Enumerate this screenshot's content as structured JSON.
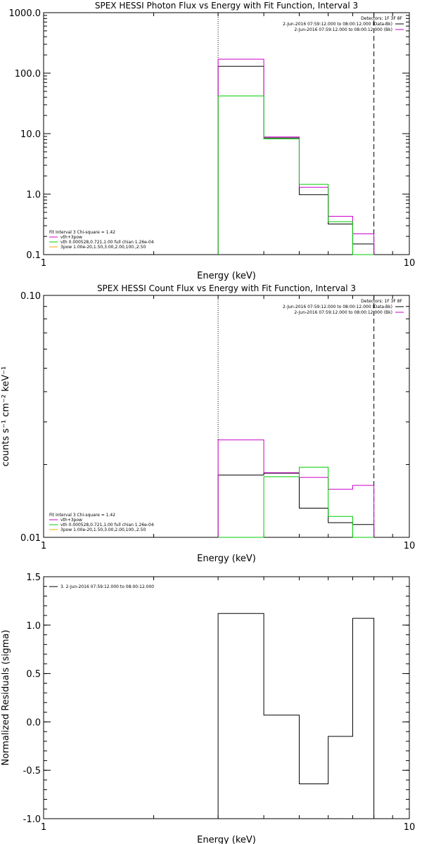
{
  "chart_data": [
    {
      "type": "line",
      "step": true,
      "title": "SPEX HESSI Photon Flux vs Energy with Fit Function, Interval 3",
      "xlabel": "Energy (keV)",
      "ylabel": "",
      "xscale": "log",
      "yscale": "log",
      "xlim": [
        1,
        10
      ],
      "ylim": [
        0.1,
        1000
      ],
      "xticks": [
        "1",
        "10"
      ],
      "yticks": [
        "0.1",
        "1.0",
        "10.0",
        "100.0",
        "1000.0"
      ],
      "ytick_values": [
        0.1,
        1,
        10,
        100,
        1000
      ],
      "vlines": [
        {
          "x": 3.0,
          "style": "dotted"
        },
        {
          "x": 8.0,
          "style": "dashed"
        }
      ],
      "bin_edges": [
        3.0,
        4.0,
        5.0,
        6.0,
        7.0,
        8.0
      ],
      "series": [
        {
          "color": "#000000",
          "values": [
            130,
            8.5,
            0.98,
            0.32,
            0.15
          ]
        },
        {
          "color": "#cc00cc",
          "values": [
            170,
            8.8,
            1.3,
            0.43,
            0.22
          ]
        },
        {
          "color": "#00cc00",
          "values": [
            42,
            8.2,
            1.45,
            0.35,
            0.1
          ]
        }
      ],
      "legend_top": {
        "header": "Detectors: 1F 3F 8F",
        "entries": [
          {
            "text": "2-Jun-2016 07:59:12.000 to 08:00:12.000 (Data-Bk)",
            "color": "#000000"
          },
          {
            "text": "2-Jun-2016 07:59:12.000 to 08:00:12.000 (Bk)",
            "color": "#cc00cc"
          }
        ]
      },
      "legend_bottom": {
        "header": "Fit Interval 3   Chi-square = 1.42",
        "entries": [
          {
            "text": "vth+3pow",
            "color": "#cc00cc"
          },
          {
            "text": "vth 0.000528,0.721,1.00  full chian 1.26e-04",
            "color": "#00cc00"
          },
          {
            "text": "3pow 1.00e-20,1.50,3.00,2.00,100.,2.50",
            "color": "#ffa500"
          }
        ]
      }
    },
    {
      "type": "line",
      "step": true,
      "title": "SPEX HESSI Count Flux vs Energy with Fit Function, Interval 3",
      "xlabel": "Energy (keV)",
      "ylabel": "counts s⁻¹ cm⁻² keV⁻¹",
      "xscale": "log",
      "yscale": "log",
      "xlim": [
        1,
        10
      ],
      "ylim": [
        0.01,
        0.1
      ],
      "xticks": [
        "1",
        "10"
      ],
      "yticks": [
        "0.01",
        "0.10"
      ],
      "ytick_values": [
        0.01,
        0.1
      ],
      "vlines": [
        {
          "x": 3.0,
          "style": "dotted"
        },
        {
          "x": 8.0,
          "style": "dashed"
        }
      ],
      "bin_edges": [
        3.0,
        4.0,
        5.0,
        6.0,
        7.0,
        8.0
      ],
      "series": [
        {
          "color": "#000000",
          "values": [
            0.0181,
            0.0184,
            0.0132,
            0.0115,
            0.0113
          ]
        },
        {
          "color": "#cc00cc",
          "values": [
            0.0253,
            0.0185,
            0.0177,
            0.0158,
            0.0164
          ]
        },
        {
          "color": "#00cc00",
          "values": [
            0.0,
            0.0178,
            0.0195,
            0.0122,
            0.0
          ]
        }
      ],
      "legend_top": {
        "header": "Detectors: 1F 3F 8F",
        "entries": [
          {
            "text": "2-Jun-2016 07:59:12.000 to 08:00:12.000 (Data-Bk)",
            "color": "#000000"
          },
          {
            "text": "2-Jun-2016 07:59:12.000 to 08:00:12.000 (Bk)",
            "color": "#cc00cc"
          }
        ]
      },
      "legend_bottom": {
        "header": "Fit Interval 3   Chi-square = 1.42",
        "entries": [
          {
            "text": "vth+3pow",
            "color": "#cc00cc"
          },
          {
            "text": "vth 0.000528,0.721,1.00  full chian 1.26e-04",
            "color": "#00cc00"
          },
          {
            "text": "3pow 1.00e-20,1.50,3.00,2.00,100.,2.50",
            "color": "#ffa500"
          }
        ]
      }
    },
    {
      "type": "line",
      "step": true,
      "title": "",
      "xlabel": "Energy (keV)",
      "ylabel": "Normalized Residuals (sigma)",
      "xscale": "log",
      "yscale": "linear",
      "xlim": [
        1,
        10
      ],
      "ylim": [
        -1.0,
        1.5
      ],
      "xticks": [
        "1",
        "10"
      ],
      "yticks": [
        "-1.0",
        "-0.5",
        "0.0",
        "0.5",
        "1.0",
        "1.5"
      ],
      "ytick_values": [
        -1.0,
        -0.5,
        0.0,
        0.5,
        1.0,
        1.5
      ],
      "vlines": [],
      "bin_edges": [
        3.0,
        4.0,
        5.0,
        6.0,
        7.0,
        8.0
      ],
      "series": [
        {
          "color": "#000000",
          "values": [
            1.12,
            0.07,
            -0.64,
            -0.15,
            1.07
          ]
        }
      ],
      "legend_top": {
        "header": "",
        "entries": [
          {
            "text": "3.  2-Jun-2016 07:59:12.000 to 08:00:12.000",
            "color": "#000000"
          }
        ]
      },
      "legend_bottom": {
        "header": "",
        "entries": []
      }
    }
  ]
}
